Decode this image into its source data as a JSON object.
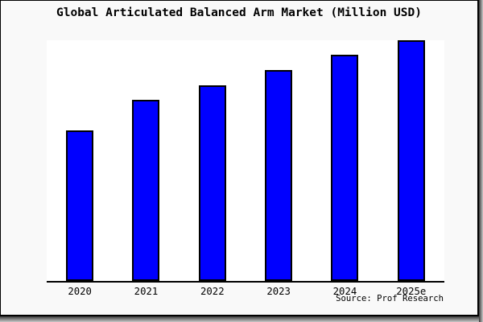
{
  "source": "Source: Prof Research",
  "colors": {
    "bar_fill": "#0000ff",
    "bar_border": "#000000",
    "figure_background": "#f9f9f9",
    "plot_background": "#ffffff",
    "axis": "#000000"
  },
  "chart_data": {
    "type": "bar",
    "title": "Global Articulated Balanced Arm Market (Million USD)",
    "categories": [
      "2020",
      "2021",
      "2022",
      "2023",
      "2024",
      "2025e"
    ],
    "values": [
      62.7,
      75.2,
      81.3,
      87.7,
      94.0,
      100.0
    ],
    "xlabel": "",
    "ylabel": "",
    "ylim": [
      0,
      100
    ],
    "value_scale": "relative height, percent of tallest bar (no numeric y-axis shown)",
    "grid": false,
    "legend": false,
    "annotation": "Source: Prof Research"
  }
}
